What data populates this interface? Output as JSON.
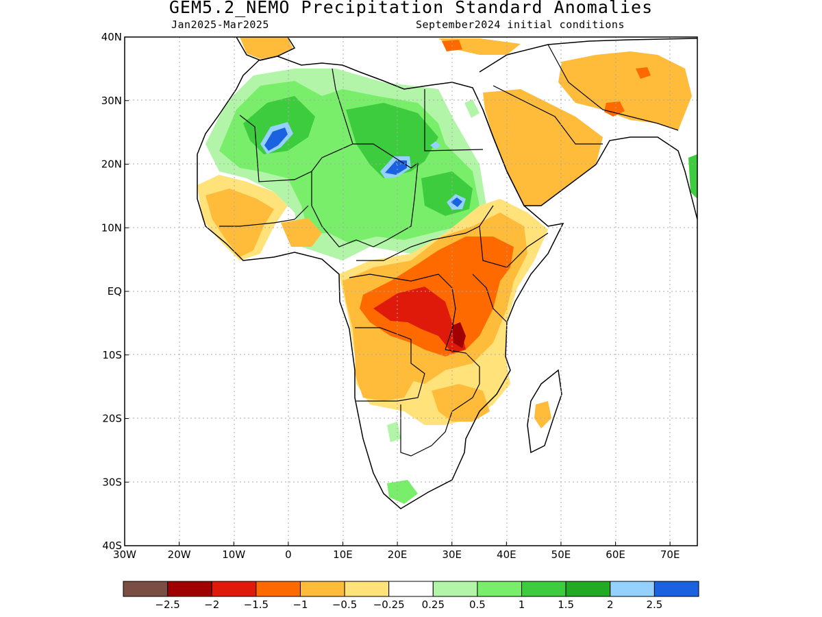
{
  "header": {
    "title": "GEM5.2_NEMO Precipitation Standard Anomalies",
    "period": "Jan2025-Mar2025",
    "initial_conditions": "September2024 initial conditions"
  },
  "axes": {
    "lon_ticks": [
      "30W",
      "20W",
      "10W",
      "0",
      "10E",
      "20E",
      "30E",
      "40E",
      "50E",
      "60E",
      "70E"
    ],
    "lat_ticks": [
      "40N",
      "30N",
      "20N",
      "10N",
      "EQ",
      "10S",
      "20S",
      "30S",
      "40S"
    ],
    "lon_range": [
      -30,
      75
    ],
    "lat_range": [
      -40,
      40
    ]
  },
  "colorbar": {
    "colors": [
      "#7a4e42",
      "#a00000",
      "#e01a0a",
      "#ff6a00",
      "#ffbb3a",
      "#ffe27a",
      "#ffffff",
      "#b2f5a8",
      "#78ee6a",
      "#3dcc3d",
      "#22aa22",
      "#95d1ff",
      "#1a62e0"
    ],
    "labels": [
      "-2.5",
      "-2",
      "-1.5",
      "-1",
      "-0.5",
      "-0.25",
      "0.25",
      "0.5",
      "1",
      "1.5",
      "2",
      "2.5"
    ]
  },
  "anomaly_colors": {
    "dry_light": "#ffe27a",
    "dry_moderate": "#ffbb3a",
    "dry_strong": "#ff6a00",
    "dry_severe": "#e01a0a",
    "wet_light": "#b2f5a8",
    "wet_moderate": "#78ee6a",
    "wet_strong": "#3dcc3d",
    "wet_very_strong": "#22aa22",
    "wet_extreme": "#95d1ff",
    "wet_max": "#1a62e0"
  }
}
